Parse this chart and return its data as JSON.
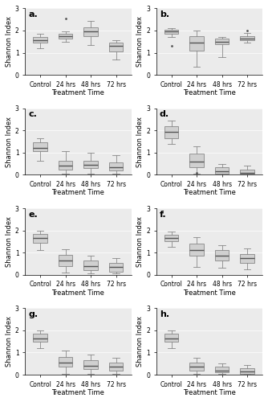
{
  "panels": [
    {
      "label": "a.",
      "boxes": [
        {
          "x": 0,
          "q1": 1.45,
          "med": 1.55,
          "q3": 1.7,
          "whislo": 1.2,
          "whishi": 1.85,
          "fliers": []
        },
        {
          "x": 1,
          "q1": 1.65,
          "med": 1.75,
          "q3": 1.85,
          "whislo": 1.5,
          "whishi": 1.95,
          "fliers": [
            2.55
          ]
        },
        {
          "x": 2,
          "q1": 1.75,
          "med": 1.95,
          "q3": 2.15,
          "whislo": 1.35,
          "whishi": 2.45,
          "fliers": []
        },
        {
          "x": 3,
          "q1": 1.05,
          "med": 1.3,
          "q3": 1.45,
          "whislo": 0.7,
          "whishi": 1.55,
          "fliers": []
        }
      ]
    },
    {
      "label": "b.",
      "boxes": [
        {
          "x": 0,
          "q1": 1.85,
          "med": 1.95,
          "q3": 2.05,
          "whislo": 1.7,
          "whishi": 2.1,
          "fliers": [
            1.3
          ]
        },
        {
          "x": 1,
          "q1": 1.1,
          "med": 1.45,
          "q3": 1.75,
          "whislo": 0.35,
          "whishi": 2.0,
          "fliers": []
        },
        {
          "x": 2,
          "q1": 1.4,
          "med": 1.5,
          "q3": 1.65,
          "whislo": 0.8,
          "whishi": 1.7,
          "fliers": []
        },
        {
          "x": 3,
          "q1": 1.55,
          "med": 1.65,
          "q3": 1.75,
          "whislo": 1.45,
          "whishi": 1.9,
          "fliers": [
            2.0
          ]
        }
      ]
    },
    {
      "label": "c.",
      "boxes": [
        {
          "x": 0,
          "q1": 1.05,
          "med": 1.2,
          "q3": 1.45,
          "whislo": 0.65,
          "whishi": 1.65,
          "fliers": []
        },
        {
          "x": 1,
          "q1": 0.25,
          "med": 0.4,
          "q3": 0.65,
          "whislo": 0.05,
          "whishi": 1.05,
          "fliers": []
        },
        {
          "x": 2,
          "q1": 0.3,
          "med": 0.45,
          "q3": 0.65,
          "whislo": 0.05,
          "whishi": 1.0,
          "fliers": []
        },
        {
          "x": 3,
          "q1": 0.2,
          "med": 0.35,
          "q3": 0.55,
          "whislo": 0.05,
          "whishi": 0.9,
          "fliers": []
        }
      ]
    },
    {
      "label": "d.",
      "boxes": [
        {
          "x": 0,
          "q1": 1.65,
          "med": 1.95,
          "q3": 2.2,
          "whislo": 1.4,
          "whishi": 2.45,
          "fliers": []
        },
        {
          "x": 1,
          "q1": 0.35,
          "med": 0.6,
          "q3": 0.95,
          "whislo": 0.05,
          "whishi": 1.3,
          "fliers": [
            0.1
          ]
        },
        {
          "x": 2,
          "q1": 0.05,
          "med": 0.15,
          "q3": 0.35,
          "whislo": 0.02,
          "whishi": 0.5,
          "fliers": []
        },
        {
          "x": 3,
          "q1": 0.05,
          "med": 0.1,
          "q3": 0.25,
          "whislo": 0.02,
          "whishi": 0.4,
          "fliers": []
        }
      ]
    },
    {
      "label": "e.",
      "boxes": [
        {
          "x": 0,
          "q1": 1.45,
          "med": 1.65,
          "q3": 1.85,
          "whislo": 1.1,
          "whishi": 2.0,
          "fliers": []
        },
        {
          "x": 1,
          "q1": 0.4,
          "med": 0.65,
          "q3": 0.9,
          "whislo": 0.1,
          "whishi": 1.15,
          "fliers": []
        },
        {
          "x": 2,
          "q1": 0.2,
          "med": 0.4,
          "q3": 0.65,
          "whislo": 0.05,
          "whishi": 0.85,
          "fliers": []
        },
        {
          "x": 3,
          "q1": 0.15,
          "med": 0.35,
          "q3": 0.55,
          "whislo": 0.05,
          "whishi": 0.75,
          "fliers": []
        }
      ]
    },
    {
      "label": "f.",
      "boxes": [
        {
          "x": 0,
          "q1": 1.5,
          "med": 1.65,
          "q3": 1.8,
          "whislo": 1.25,
          "whishi": 1.95,
          "fliers": []
        },
        {
          "x": 1,
          "q1": 0.85,
          "med": 1.1,
          "q3": 1.4,
          "whislo": 0.35,
          "whishi": 1.7,
          "fliers": []
        },
        {
          "x": 2,
          "q1": 0.65,
          "med": 0.85,
          "q3": 1.1,
          "whislo": 0.3,
          "whishi": 1.35,
          "fliers": []
        },
        {
          "x": 3,
          "q1": 0.55,
          "med": 0.75,
          "q3": 0.95,
          "whislo": 0.25,
          "whishi": 1.2,
          "fliers": []
        }
      ]
    },
    {
      "label": "g.",
      "boxes": [
        {
          "x": 0,
          "q1": 1.5,
          "med": 1.65,
          "q3": 1.85,
          "whislo": 1.2,
          "whishi": 2.0,
          "fliers": []
        },
        {
          "x": 1,
          "q1": 0.35,
          "med": 0.55,
          "q3": 0.8,
          "whislo": 0.05,
          "whishi": 1.1,
          "fliers": []
        },
        {
          "x": 2,
          "q1": 0.25,
          "med": 0.4,
          "q3": 0.65,
          "whislo": 0.05,
          "whishi": 0.9,
          "fliers": []
        },
        {
          "x": 3,
          "q1": 0.2,
          "med": 0.35,
          "q3": 0.55,
          "whislo": 0.05,
          "whishi": 0.75,
          "fliers": []
        }
      ]
    },
    {
      "label": "h.",
      "boxes": [
        {
          "x": 0,
          "q1": 1.5,
          "med": 1.65,
          "q3": 1.85,
          "whislo": 1.2,
          "whishi": 2.0,
          "fliers": []
        },
        {
          "x": 1,
          "q1": 0.2,
          "med": 0.35,
          "q3": 0.55,
          "whislo": 0.05,
          "whishi": 0.75,
          "fliers": []
        },
        {
          "x": 2,
          "q1": 0.1,
          "med": 0.2,
          "q3": 0.35,
          "whislo": 0.02,
          "whishi": 0.5,
          "fliers": []
        },
        {
          "x": 3,
          "q1": 0.05,
          "med": 0.15,
          "q3": 0.3,
          "whislo": 0.02,
          "whishi": 0.45,
          "fliers": []
        }
      ]
    }
  ],
  "xticklabels": [
    "Control",
    "24 hrs",
    "48 hrs",
    "72 hrs"
  ],
  "ylabel": "Shannon Index",
  "xlabel": "Treatment Time",
  "ylim": [
    0,
    3
  ],
  "yticks": [
    0,
    1,
    2,
    3
  ],
  "box_color": "#d0d0d0",
  "median_color": "#555555",
  "whisker_color": "#888888",
  "bg_color": "#ebebeb",
  "fig_bg_color": "#ffffff",
  "tick_fontsize": 5.5,
  "axis_label_fontsize": 6,
  "panel_label_fontsize": 8
}
